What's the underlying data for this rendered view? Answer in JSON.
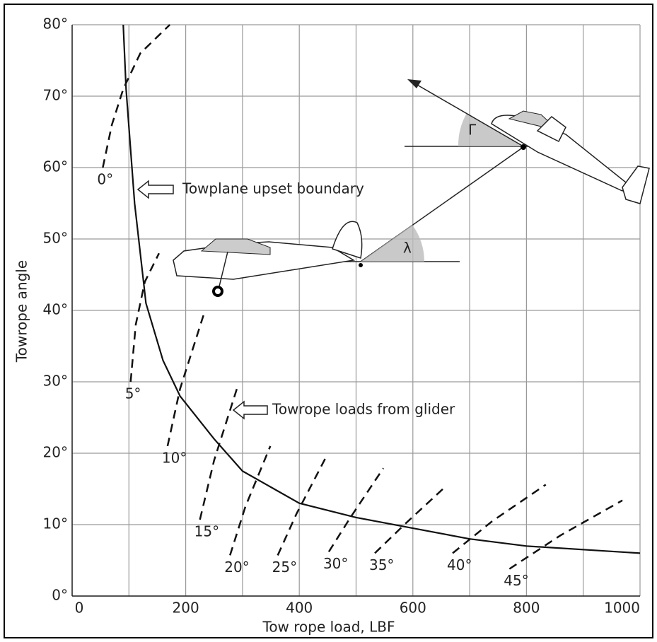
{
  "chart_data": {
    "type": "line",
    "xlabel": "Tow rope load, LBF",
    "ylabel": "Towrope angle",
    "xlim": [
      0,
      1000
    ],
    "ylim": [
      0,
      80
    ],
    "xticks": [
      0,
      200,
      400,
      600,
      800,
      1000
    ],
    "x_minor_ticks": [
      100,
      300,
      500,
      700,
      900
    ],
    "yticks": [
      {
        "value": 0,
        "label": "0°"
      },
      {
        "value": 10,
        "label": "10°"
      },
      {
        "value": 20,
        "label": "20°"
      },
      {
        "value": 30,
        "label": "30°"
      },
      {
        "value": 40,
        "label": "40°"
      },
      {
        "value": 50,
        "label": "50°"
      },
      {
        "value": 60,
        "label": "60°"
      },
      {
        "value": 70,
        "label": "70°"
      },
      {
        "value": 80,
        "label": "80°"
      }
    ],
    "grid": true,
    "annotations": [
      "Towrope loads from glider",
      "λ",
      "Γ"
    ],
    "series": [
      {
        "name": "Towplane upset boundary",
        "color": "#111111",
        "dashed": false,
        "x": [
          90,
          95,
          110,
          130,
          160,
          190,
          250,
          300,
          400,
          500,
          600,
          700,
          800,
          1000
        ],
        "values": [
          80,
          71,
          55,
          41,
          33,
          28,
          22,
          17.5,
          13,
          11,
          9.5,
          8,
          7,
          6
        ]
      },
      {
        "name": "0°",
        "color": "#111111",
        "dashed": true,
        "x": [
          54,
          70,
          90,
          120,
          172
        ],
        "values": [
          60,
          66,
          71,
          76,
          80
        ]
      },
      {
        "name": "5°",
        "color": "#111111",
        "dashed": true,
        "x": [
          103,
          112,
          128,
          153
        ],
        "values": [
          30,
          38,
          44,
          48
        ]
      },
      {
        "name": "10°",
        "color": "#111111",
        "dashed": true,
        "x": [
          168,
          190,
          234
        ],
        "values": [
          21,
          29,
          40
        ]
      },
      {
        "name": "15°",
        "color": "#111111",
        "dashed": true,
        "x": [
          225,
          250,
          290
        ],
        "values": [
          10.7,
          19,
          29
        ]
      },
      {
        "name": "20°",
        "color": "#111111",
        "dashed": true,
        "x": [
          278,
          305,
          349
        ],
        "values": [
          5.7,
          12.5,
          21
        ]
      },
      {
        "name": "25°",
        "color": "#111111",
        "dashed": true,
        "x": [
          362,
          395,
          448
        ],
        "values": [
          5.7,
          11.5,
          19.6
        ]
      },
      {
        "name": "30°",
        "color": "#111111",
        "dashed": true,
        "x": [
          452,
          490,
          548
        ],
        "values": [
          6.2,
          11,
          17.9
        ]
      },
      {
        "name": "35°",
        "color": "#111111",
        "dashed": true,
        "x": [
          533,
          585,
          657
        ],
        "values": [
          6,
          10,
          15.3
        ]
      },
      {
        "name": "40°",
        "color": "#111111",
        "dashed": true,
        "x": [
          670,
          740,
          834
        ],
        "values": [
          6,
          10.5,
          15.6
        ]
      },
      {
        "name": "45°",
        "color": "#111111",
        "dashed": true,
        "x": [
          770,
          860,
          969
        ],
        "values": [
          3.8,
          8.5,
          13.4
        ]
      }
    ]
  }
}
